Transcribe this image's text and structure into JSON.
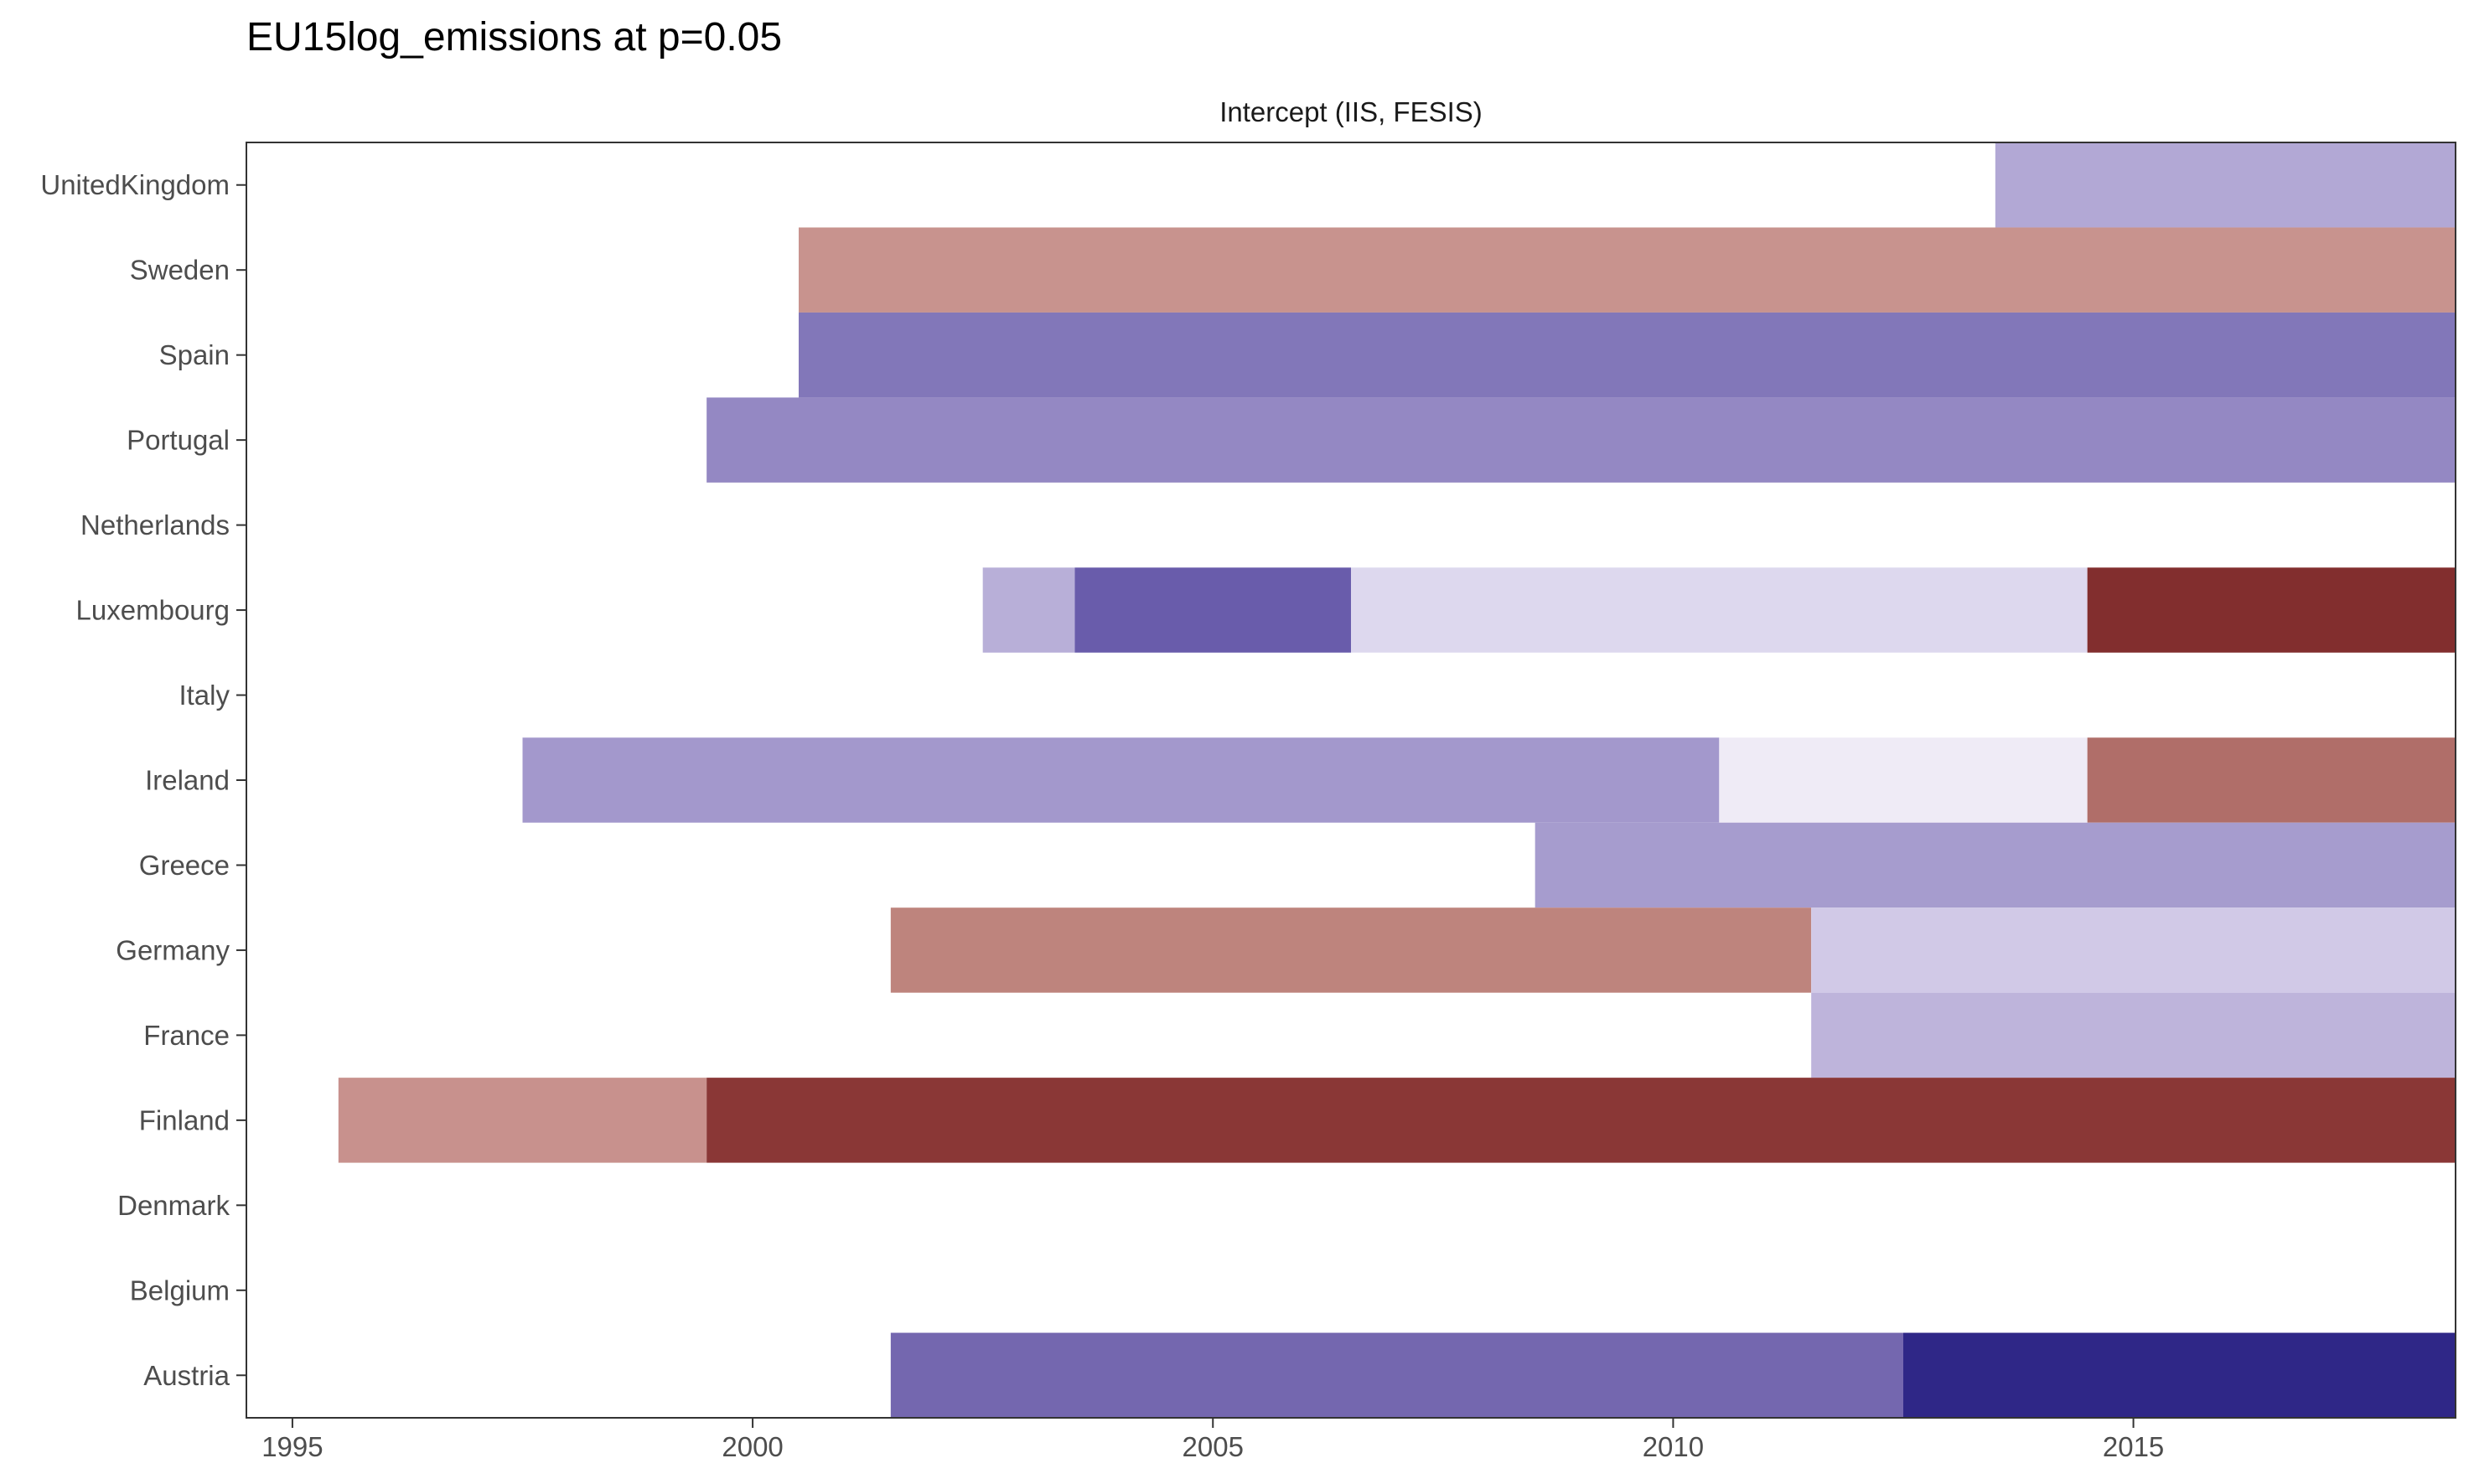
{
  "title": "EU15log_emissions at p=0.05",
  "chart_data": {
    "type": "heatmap",
    "title": "EU15log_emissions at p=0.05",
    "panel_label": "Intercept (IIS, FESIS)",
    "xlabel": "",
    "ylabel": "",
    "xlim": [
      1994.5,
      2018.5
    ],
    "x_ticks": [
      1995,
      2000,
      2005,
      2010,
      2015
    ],
    "grid": false,
    "legend": "none",
    "countries": [
      "UnitedKingdom",
      "Sweden",
      "Spain",
      "Portugal",
      "Netherlands",
      "Luxembourg",
      "Italy",
      "Ireland",
      "Greece",
      "Germany",
      "France",
      "Finland",
      "Denmark",
      "Belgium",
      "Austria"
    ],
    "segments": [
      {
        "country": "UnitedKingdom",
        "start": 2013.5,
        "end": 2018.5,
        "color": "#b2a8d5"
      },
      {
        "country": "Sweden",
        "start": 2000.5,
        "end": 2018.5,
        "color": "#c8938e"
      },
      {
        "country": "Spain",
        "start": 2000.5,
        "end": 2018.5,
        "color": "#8277b9"
      },
      {
        "country": "Portugal",
        "start": 1999.5,
        "end": 2018.5,
        "color": "#9488c3"
      },
      {
        "country": "Luxembourg",
        "start": 2002.5,
        "end": 2003.5,
        "color": "#b8afd8"
      },
      {
        "country": "Luxembourg",
        "start": 2003.5,
        "end": 2006.5,
        "color": "#695cab"
      },
      {
        "country": "Luxembourg",
        "start": 2006.5,
        "end": 2014.5,
        "color": "#ddd8ee"
      },
      {
        "country": "Luxembourg",
        "start": 2014.5,
        "end": 2018.5,
        "color": "#822e2e"
      },
      {
        "country": "Ireland",
        "start": 1997.5,
        "end": 2010.5,
        "color": "#a398cc"
      },
      {
        "country": "Ireland",
        "start": 2010.5,
        "end": 2014.5,
        "color": "#efebf6"
      },
      {
        "country": "Ireland",
        "start": 2014.5,
        "end": 2018.5,
        "color": "#b06e69"
      },
      {
        "country": "Greece",
        "start": 2008.5,
        "end": 2018.5,
        "color": "#a69cce"
      },
      {
        "country": "Germany",
        "start": 2001.5,
        "end": 2011.5,
        "color": "#be847d"
      },
      {
        "country": "Germany",
        "start": 2011.5,
        "end": 2018.5,
        "color": "#d1c9e7"
      },
      {
        "country": "France",
        "start": 2011.5,
        "end": 2018.5,
        "color": "#beb4db"
      },
      {
        "country": "Finland",
        "start": 1995.5,
        "end": 1999.5,
        "color": "#c8918d"
      },
      {
        "country": "Finland",
        "start": 1999.5,
        "end": 2018.5,
        "color": "#8a3736"
      },
      {
        "country": "Austria",
        "start": 2001.5,
        "end": 2012.5,
        "color": "#7467af"
      },
      {
        "country": "Austria",
        "start": 2012.5,
        "end": 2018.5,
        "color": "#2f2787"
      }
    ]
  }
}
